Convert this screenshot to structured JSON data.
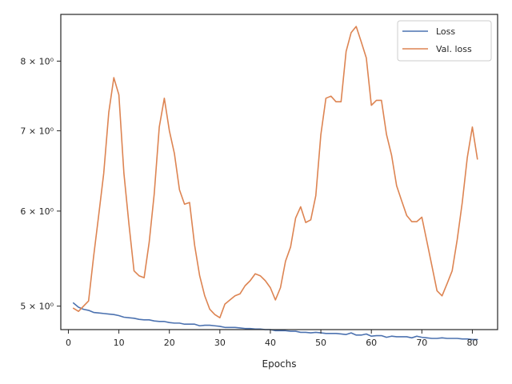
{
  "chart_data": {
    "type": "line",
    "title": "",
    "xlabel": "Epochs",
    "ylabel": "",
    "xlim": [
      -1.5,
      85.0
    ],
    "ylim": [
      4.78,
      8.75
    ],
    "yscale": "log",
    "x_ticks": [
      0,
      10,
      20,
      30,
      40,
      50,
      60,
      70,
      80
    ],
    "x_tick_labels": [
      "0",
      "10",
      "20",
      "30",
      "40",
      "50",
      "60",
      "70",
      "80"
    ],
    "y_ticks": [
      5,
      6,
      7,
      8
    ],
    "y_tick_labels": [
      "5 × 10⁰",
      "6 × 10⁰",
      "7 × 10⁰",
      "8 × 10⁰"
    ],
    "grid": false,
    "legend_position": "upper right",
    "x": [
      1,
      2,
      3,
      4,
      5,
      6,
      7,
      8,
      9,
      10,
      11,
      12,
      13,
      14,
      15,
      16,
      17,
      18,
      19,
      20,
      21,
      22,
      23,
      24,
      25,
      26,
      27,
      28,
      29,
      30,
      31,
      32,
      33,
      34,
      35,
      36,
      37,
      38,
      39,
      40,
      41,
      42,
      43,
      44,
      45,
      46,
      47,
      48,
      49,
      50,
      51,
      52,
      53,
      54,
      55,
      56,
      57,
      58,
      59,
      60,
      61,
      62,
      63,
      64,
      65,
      66,
      67,
      68,
      69,
      70,
      71,
      72,
      73,
      74,
      75,
      76,
      77,
      78,
      79,
      80,
      81
    ],
    "series": [
      {
        "name": "Loss",
        "color": "#4c72b0",
        "values": [
          5.03,
          4.99,
          4.97,
          4.96,
          4.94,
          4.935,
          4.93,
          4.925,
          4.92,
          4.91,
          4.895,
          4.89,
          4.885,
          4.875,
          4.87,
          4.87,
          4.86,
          4.855,
          4.855,
          4.845,
          4.84,
          4.84,
          4.83,
          4.83,
          4.83,
          4.815,
          4.82,
          4.82,
          4.815,
          4.81,
          4.8,
          4.8,
          4.8,
          4.795,
          4.79,
          4.79,
          4.785,
          4.785,
          4.78,
          4.78,
          4.77,
          4.77,
          4.77,
          4.765,
          4.765,
          4.755,
          4.755,
          4.75,
          4.755,
          4.75,
          4.745,
          4.745,
          4.745,
          4.74,
          4.735,
          4.75,
          4.73,
          4.73,
          4.74,
          4.72,
          4.725,
          4.725,
          4.71,
          4.72,
          4.715,
          4.715,
          4.715,
          4.705,
          4.72,
          4.71,
          4.705,
          4.7,
          4.7,
          4.705,
          4.7,
          4.7,
          4.7,
          4.695,
          4.695,
          4.69,
          4.69
        ]
      },
      {
        "name": "Val. loss",
        "color": "#dd8452",
        "values": [
          4.98,
          4.95,
          5.0,
          5.05,
          5.5,
          5.95,
          6.45,
          7.25,
          7.75,
          7.5,
          6.45,
          5.85,
          5.35,
          5.3,
          5.28,
          5.65,
          6.2,
          7.05,
          7.45,
          7.0,
          6.7,
          6.25,
          6.08,
          6.1,
          5.62,
          5.3,
          5.1,
          4.97,
          4.92,
          4.89,
          5.02,
          5.06,
          5.1,
          5.12,
          5.2,
          5.25,
          5.32,
          5.3,
          5.25,
          5.18,
          5.06,
          5.18,
          5.45,
          5.6,
          5.92,
          6.05,
          5.87,
          5.9,
          6.18,
          6.95,
          7.45,
          7.48,
          7.4,
          7.4,
          8.15,
          8.45,
          8.55,
          8.3,
          8.05,
          7.35,
          7.42,
          7.42,
          6.95,
          6.68,
          6.3,
          6.12,
          5.95,
          5.88,
          5.88,
          5.93,
          5.66,
          5.4,
          5.15,
          5.1,
          5.22,
          5.35,
          5.68,
          6.1,
          6.65,
          7.05,
          6.63
        ]
      }
    ]
  }
}
